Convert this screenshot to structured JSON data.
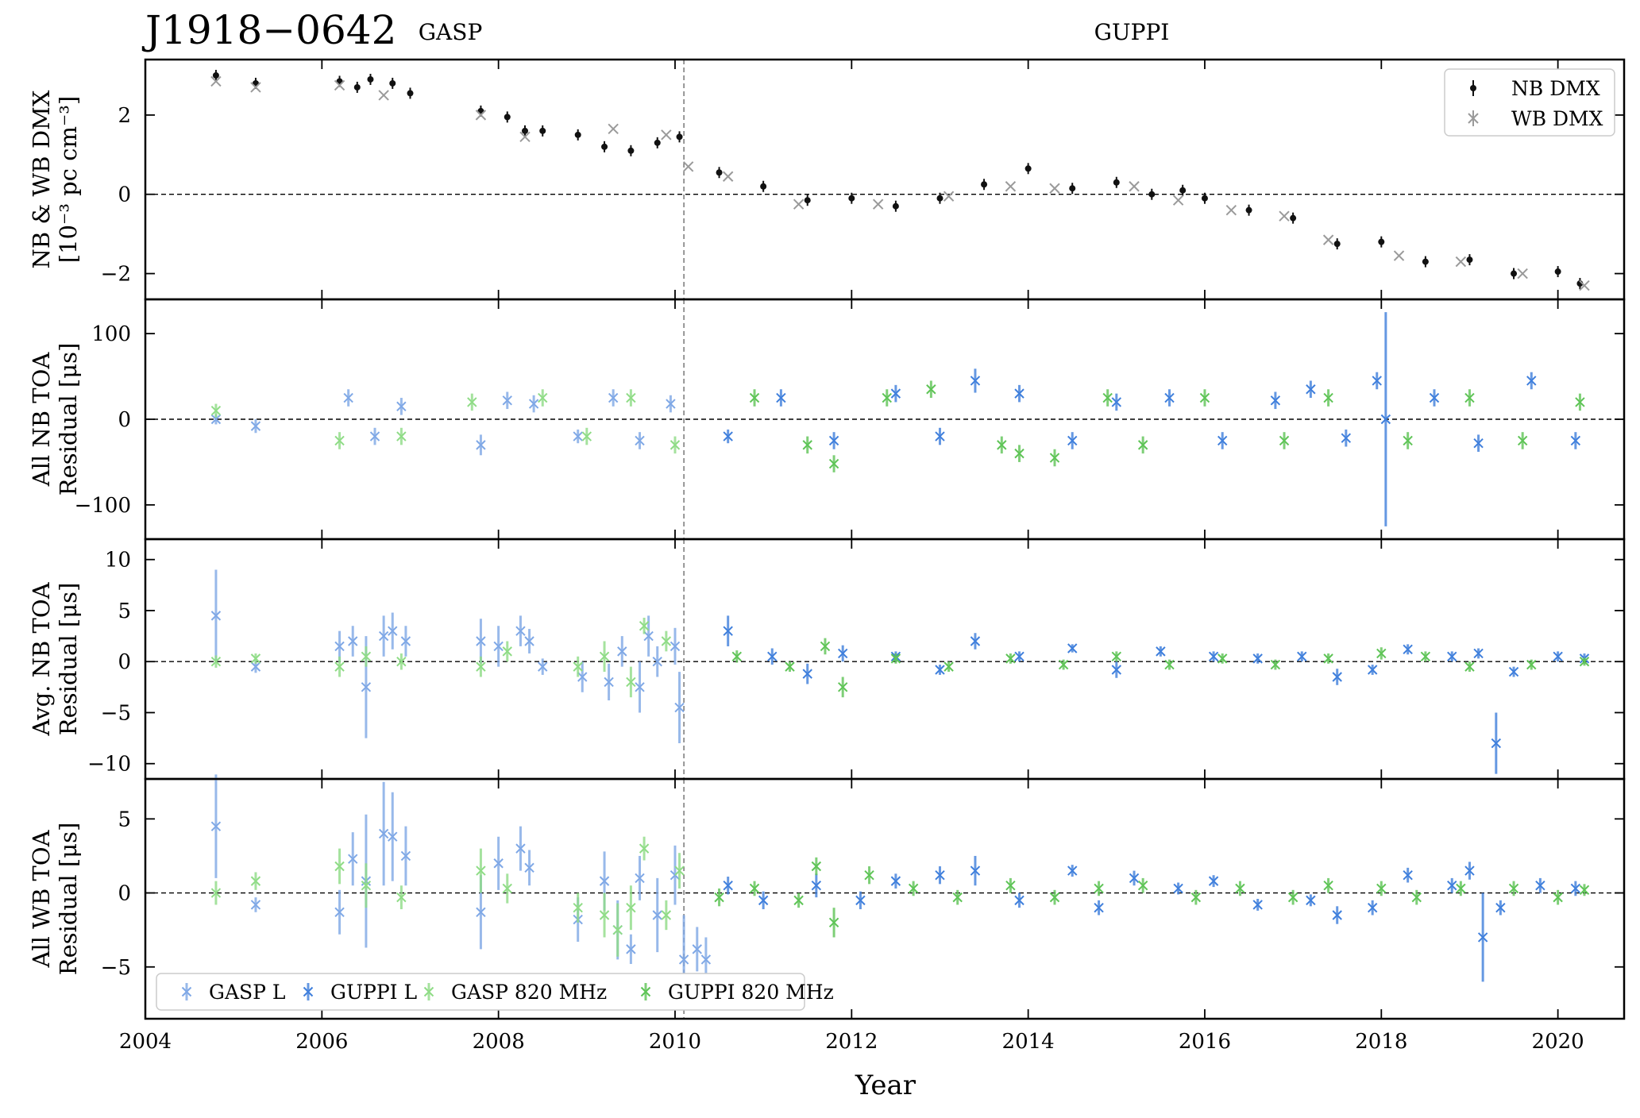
{
  "figure": {
    "title": "J1918−0642",
    "backend_labels": [
      "GASP",
      "GUPPI"
    ],
    "xlabel": "Year"
  },
  "colors": {
    "nb_dmx": "#111111",
    "wb_dmx": "#9a9a9a",
    "gasp_l": "#7fa8e6",
    "guppi_l": "#3f7fdc",
    "gasp_820": "#8fdc86",
    "guppi_820": "#5ec456",
    "zero_line": "#000000",
    "transition_line": "#555555"
  },
  "chart_data": [
    {
      "type": "scatter",
      "panel": "dmx",
      "ylabel_lines": [
        "NB & WB DMX",
        "[10⁻³ pc cm⁻³]"
      ],
      "xlim": [
        2004,
        2020.75
      ],
      "ylim": [
        -2.65,
        3.4
      ],
      "yticks": [
        -2,
        0,
        2
      ],
      "ytick_labels": [
        "−2",
        "0",
        "2"
      ],
      "grid": false,
      "legend_position": "top-right",
      "legend": [
        "NB DMX",
        "WB DMX"
      ],
      "zero_line": 0,
      "transition_year": 2010.1,
      "series": [
        {
          "name": "NB DMX",
          "marker": "dot",
          "color": "#111111",
          "x": [
            2004.8,
            2005.25,
            2006.2,
            2006.4,
            2006.55,
            2006.8,
            2007.0,
            2007.8,
            2008.1,
            2008.3,
            2008.5,
            2008.9,
            2009.2,
            2009.5,
            2009.8,
            2010.05,
            2010.5,
            2011.0,
            2011.5,
            2012.0,
            2012.5,
            2013.0,
            2013.5,
            2014.0,
            2014.5,
            2015.0,
            2015.4,
            2015.75,
            2016.0,
            2016.5,
            2017.0,
            2017.5,
            2018.0,
            2018.5,
            2019.0,
            2019.5,
            2020.0,
            2020.25
          ],
          "y": [
            3.0,
            2.8,
            2.85,
            2.7,
            2.9,
            2.8,
            2.55,
            2.1,
            1.95,
            1.6,
            1.6,
            1.5,
            1.2,
            1.1,
            1.3,
            1.45,
            0.55,
            0.2,
            -0.15,
            -0.1,
            -0.3,
            -0.1,
            0.25,
            0.65,
            0.15,
            0.3,
            0.0,
            0.1,
            -0.1,
            -0.4,
            -0.6,
            -1.25,
            -1.2,
            -1.7,
            -1.65,
            -2.0,
            -1.95,
            -2.25
          ]
        },
        {
          "name": "WB DMX",
          "marker": "x",
          "color": "#9a9a9a",
          "x": [
            2004.8,
            2005.25,
            2006.2,
            2006.7,
            2007.8,
            2008.3,
            2009.3,
            2009.9,
            2010.15,
            2010.6,
            2011.4,
            2012.3,
            2013.1,
            2013.8,
            2014.3,
            2015.2,
            2015.7,
            2016.3,
            2016.9,
            2017.4,
            2018.2,
            2018.9,
            2019.6,
            2020.3
          ],
          "y": [
            2.85,
            2.7,
            2.75,
            2.5,
            2.0,
            1.45,
            1.65,
            1.5,
            0.7,
            0.45,
            -0.25,
            -0.25,
            -0.05,
            0.2,
            0.15,
            0.2,
            -0.15,
            -0.4,
            -0.55,
            -1.15,
            -1.55,
            -1.7,
            -2.0,
            -2.3
          ]
        }
      ]
    },
    {
      "type": "scatter",
      "panel": "all_nb",
      "ylabel_lines": [
        "All NB TOA",
        "Residual [μs]"
      ],
      "xlim": [
        2004,
        2020.75
      ],
      "ylim": [
        -140,
        140
      ],
      "yticks": [
        -100,
        0,
        100
      ],
      "ytick_labels": [
        "−100",
        "0",
        "100"
      ],
      "grid": false,
      "zero_line": 0,
      "transition_year": 2010.1,
      "series": [
        {
          "name": "GASP L",
          "color": "#7fa8e6",
          "x": [
            2004.8,
            2005.25,
            2006.3,
            2006.6,
            2006.9,
            2007.8,
            2008.1,
            2008.4,
            2008.9,
            2009.3,
            2009.6,
            2009.95
          ],
          "y": [
            0,
            -8,
            25,
            -20,
            15,
            -30,
            22,
            18,
            -20,
            25,
            -25,
            18
          ],
          "yerr": [
            6,
            8,
            10,
            10,
            10,
            12,
            10,
            10,
            8,
            10,
            10,
            10
          ]
        },
        {
          "name": "GUPPI L",
          "color": "#3f7fdc",
          "x": [
            2010.6,
            2011.2,
            2011.8,
            2012.5,
            2013.0,
            2013.4,
            2013.9,
            2014.5,
            2015.0,
            2015.6,
            2016.2,
            2016.8,
            2017.2,
            2017.6,
            2017.95,
            2018.05,
            2018.6,
            2019.1,
            2019.7,
            2020.2
          ],
          "y": [
            -20,
            25,
            -25,
            30,
            -20,
            45,
            30,
            -25,
            20,
            25,
            -25,
            22,
            35,
            -22,
            45,
            0,
            25,
            -28,
            45,
            -25
          ],
          "yerr": [
            8,
            10,
            10,
            10,
            10,
            14,
            10,
            10,
            10,
            10,
            10,
            10,
            10,
            10,
            10,
            125,
            10,
            10,
            10,
            10
          ]
        },
        {
          "name": "GASP 820 MHz",
          "color": "#8fdc86",
          "x": [
            2004.8,
            2006.2,
            2006.9,
            2007.7,
            2008.5,
            2009.0,
            2009.5,
            2010.0
          ],
          "y": [
            10,
            -25,
            -20,
            20,
            25,
            -20,
            25,
            -30
          ],
          "yerr": [
            8,
            10,
            10,
            10,
            10,
            10,
            10,
            10
          ]
        },
        {
          "name": "GUPPI 820 MHz",
          "color": "#5ec456",
          "x": [
            2010.9,
            2011.5,
            2011.8,
            2012.4,
            2012.9,
            2013.7,
            2013.9,
            2014.3,
            2014.9,
            2015.3,
            2016.0,
            2016.9,
            2017.4,
            2018.3,
            2019.0,
            2019.6,
            2020.25
          ],
          "y": [
            25,
            -30,
            -52,
            25,
            35,
            -30,
            -40,
            -45,
            25,
            -30,
            25,
            -25,
            25,
            -25,
            25,
            -25,
            20
          ],
          "yerr": [
            10,
            10,
            10,
            10,
            10,
            10,
            10,
            10,
            10,
            10,
            10,
            10,
            10,
            10,
            10,
            10,
            10
          ]
        }
      ]
    },
    {
      "type": "scatter",
      "panel": "avg_nb",
      "ylabel_lines": [
        "Avg. NB TOA",
        "Residual [μs]"
      ],
      "xlim": [
        2004,
        2020.75
      ],
      "ylim": [
        -11.5,
        12
      ],
      "yticks": [
        -10,
        -5,
        0,
        5,
        10
      ],
      "ytick_labels": [
        "−10",
        "−5",
        "0",
        "5",
        "10"
      ],
      "grid": false,
      "zero_line": 0,
      "transition_year": 2010.1,
      "series": [
        {
          "name": "GASP L",
          "color": "#7fa8e6",
          "x": [
            2004.8,
            2005.25,
            2006.2,
            2006.35,
            2006.5,
            2006.7,
            2006.8,
            2006.95,
            2007.8,
            2008.0,
            2008.25,
            2008.35,
            2008.5,
            2008.95,
            2009.25,
            2009.4,
            2009.6,
            2009.7,
            2009.8,
            2010.0,
            2010.05
          ],
          "y": [
            4.5,
            -0.5,
            1.5,
            2.0,
            -2.5,
            2.5,
            3.0,
            2.0,
            2.0,
            1.5,
            3.0,
            2.0,
            -0.5,
            -1.5,
            -2.0,
            1.0,
            -2.5,
            2.5,
            0.0,
            1.5,
            -4.5
          ],
          "yerr": [
            4.5,
            0.6,
            1.5,
            1.5,
            5.0,
            2.0,
            1.8,
            1.5,
            2.2,
            2.0,
            1.5,
            1.2,
            0.8,
            1.5,
            1.8,
            1.5,
            2.5,
            2.0,
            1.5,
            1.8,
            3.5
          ]
        },
        {
          "name": "GUPPI L",
          "color": "#3f7fdc",
          "x": [
            2010.6,
            2011.1,
            2011.5,
            2011.9,
            2012.5,
            2013.0,
            2013.4,
            2013.9,
            2014.5,
            2015.0,
            2015.5,
            2016.1,
            2016.6,
            2017.1,
            2017.5,
            2017.9,
            2018.3,
            2018.8,
            2019.1,
            2019.3,
            2019.5,
            2020.0,
            2020.3
          ],
          "y": [
            3.0,
            0.5,
            -1.2,
            0.8,
            0.5,
            -0.8,
            2.0,
            0.5,
            1.3,
            -0.8,
            1.0,
            0.5,
            0.3,
            0.5,
            -1.5,
            -0.8,
            1.2,
            0.5,
            0.8,
            -8.0,
            -1.0,
            0.5,
            0.3
          ],
          "yerr": [
            1.5,
            0.8,
            1.0,
            0.8,
            0.5,
            0.5,
            0.8,
            0.5,
            0.4,
            0.8,
            0.5,
            0.5,
            0.5,
            0.5,
            0.8,
            0.5,
            0.5,
            0.5,
            0.5,
            3.0,
            0.5,
            0.5,
            0.5
          ]
        },
        {
          "name": "GASP 820 MHz",
          "color": "#8fdc86",
          "x": [
            2004.8,
            2005.25,
            2006.2,
            2006.5,
            2006.9,
            2007.8,
            2008.1,
            2008.9,
            2009.2,
            2009.5,
            2009.65,
            2009.9
          ],
          "y": [
            0.0,
            0.3,
            -0.5,
            0.5,
            0.0,
            -0.5,
            1.0,
            -0.5,
            0.5,
            -2.0,
            3.5,
            2.0
          ],
          "yerr": [
            0.6,
            0.5,
            1.0,
            1.0,
            0.8,
            1.0,
            1.0,
            1.0,
            1.5,
            1.5,
            0.8,
            1.0
          ]
        },
        {
          "name": "GUPPI 820 MHz",
          "color": "#5ec456",
          "x": [
            2010.7,
            2011.3,
            2011.7,
            2011.9,
            2012.5,
            2013.1,
            2013.8,
            2014.4,
            2015.0,
            2015.6,
            2016.2,
            2016.8,
            2017.4,
            2018.0,
            2018.5,
            2019.0,
            2019.7,
            2020.3
          ],
          "y": [
            0.5,
            -0.5,
            1.5,
            -2.5,
            0.3,
            -0.5,
            0.3,
            -0.3,
            0.5,
            -0.3,
            0.3,
            -0.3,
            0.3,
            0.8,
            0.5,
            -0.5,
            -0.3,
            0.0
          ],
          "yerr": [
            0.6,
            0.5,
            0.8,
            1.0,
            0.5,
            0.5,
            0.5,
            0.5,
            0.5,
            0.5,
            0.5,
            0.5,
            0.5,
            0.6,
            0.5,
            0.5,
            0.5,
            0.4
          ]
        }
      ]
    },
    {
      "type": "scatter",
      "panel": "all_wb",
      "ylabel_lines": [
        "All WB TOA",
        "Residual [μs]"
      ],
      "xlim": [
        2004,
        2020.75
      ],
      "ylim": [
        -8.5,
        7.7
      ],
      "yticks": [
        -5,
        0,
        5
      ],
      "ytick_labels": [
        "−5",
        "0",
        "5"
      ],
      "grid": false,
      "legend_position": "bottom-left",
      "legend": [
        "GASP L",
        "GUPPI L",
        "GASP 820 MHz",
        "GUPPI 820 MHz"
      ],
      "zero_line": 0,
      "transition_year": 2010.1,
      "series": [
        {
          "name": "GASP L",
          "color": "#7fa8e6",
          "x": [
            2004.8,
            2005.25,
            2006.2,
            2006.35,
            2006.5,
            2006.7,
            2006.8,
            2006.95,
            2007.8,
            2008.0,
            2008.25,
            2008.35,
            2008.9,
            2009.2,
            2009.35,
            2009.5,
            2009.6,
            2009.8,
            2010.0,
            2010.1,
            2010.25,
            2010.35
          ],
          "y": [
            4.5,
            -0.8,
            -1.3,
            2.3,
            0.8,
            4.0,
            3.8,
            2.5,
            -1.3,
            2.0,
            3.0,
            1.7,
            -1.8,
            0.8,
            -2.5,
            -3.8,
            1.0,
            -1.5,
            1.2,
            -4.5,
            -3.8,
            -4.5
          ],
          "yerr": [
            3.5,
            0.5,
            1.5,
            1.8,
            4.5,
            3.5,
            3.0,
            2.0,
            2.5,
            1.8,
            1.5,
            1.2,
            1.5,
            2.0,
            2.0,
            1.0,
            1.5,
            2.5,
            2.0,
            3.0,
            1.5,
            1.5
          ]
        },
        {
          "name": "GUPPI L",
          "color": "#3f7fdc",
          "x": [
            2010.6,
            2011.0,
            2011.6,
            2012.1,
            2012.5,
            2013.0,
            2013.4,
            2013.9,
            2014.5,
            2014.8,
            2015.2,
            2015.7,
            2016.1,
            2016.6,
            2017.2,
            2017.5,
            2017.9,
            2018.3,
            2018.8,
            2019.0,
            2019.15,
            2019.35,
            2019.8,
            2020.2
          ],
          "y": [
            0.5,
            -0.5,
            0.5,
            -0.5,
            0.8,
            1.2,
            1.5,
            -0.5,
            1.5,
            -1.0,
            1.0,
            0.3,
            0.8,
            -0.8,
            -0.5,
            -1.5,
            -1.0,
            1.2,
            0.5,
            1.5,
            -3.0,
            -1.0,
            0.5,
            0.3
          ],
          "yerr": [
            0.6,
            0.6,
            0.8,
            0.6,
            0.5,
            0.6,
            1.0,
            0.5,
            0.4,
            0.5,
            0.5,
            0.4,
            0.4,
            0.4,
            0.4,
            0.6,
            0.5,
            0.5,
            0.5,
            0.6,
            3.0,
            0.5,
            0.5,
            0.5
          ]
        },
        {
          "name": "GASP 820 MHz",
          "color": "#8fdc86",
          "x": [
            2004.8,
            2005.25,
            2006.2,
            2006.5,
            2006.9,
            2007.8,
            2008.1,
            2008.9,
            2009.2,
            2009.35,
            2009.5,
            2009.65,
            2009.9,
            2010.05
          ],
          "y": [
            0.0,
            0.8,
            1.8,
            0.5,
            -0.3,
            1.5,
            0.3,
            -1.0,
            -1.5,
            -2.5,
            -1.0,
            3.0,
            -1.5,
            1.5
          ],
          "yerr": [
            0.8,
            0.6,
            1.2,
            1.5,
            0.8,
            1.5,
            1.0,
            1.0,
            1.5,
            1.8,
            1.5,
            0.8,
            1.0,
            1.2
          ]
        },
        {
          "name": "GUPPI 820 MHz",
          "color": "#5ec456",
          "x": [
            2010.5,
            2010.9,
            2011.4,
            2011.6,
            2011.8,
            2012.2,
            2012.7,
            2013.2,
            2013.8,
            2014.3,
            2014.8,
            2015.3,
            2015.9,
            2016.4,
            2017.0,
            2017.4,
            2018.0,
            2018.4,
            2018.9,
            2019.5,
            2020.0,
            2020.3
          ],
          "y": [
            -0.3,
            0.3,
            -0.5,
            1.8,
            -2.0,
            1.2,
            0.3,
            -0.3,
            0.5,
            -0.3,
            0.3,
            0.5,
            -0.3,
            0.3,
            -0.3,
            0.5,
            0.3,
            -0.3,
            0.3,
            0.3,
            -0.3,
            0.2
          ],
          "yerr": [
            0.6,
            0.5,
            0.5,
            0.6,
            1.0,
            0.6,
            0.5,
            0.5,
            0.5,
            0.5,
            0.5,
            0.5,
            0.5,
            0.5,
            0.5,
            0.5,
            0.5,
            0.5,
            0.5,
            0.5,
            0.5,
            0.4
          ]
        }
      ]
    }
  ],
  "x_axis": {
    "ticks": [
      2004,
      2006,
      2008,
      2010,
      2012,
      2014,
      2016,
      2018,
      2020
    ],
    "tick_labels": [
      "2004",
      "2006",
      "2008",
      "2010",
      "2012",
      "2014",
      "2016",
      "2018",
      "2020"
    ]
  }
}
